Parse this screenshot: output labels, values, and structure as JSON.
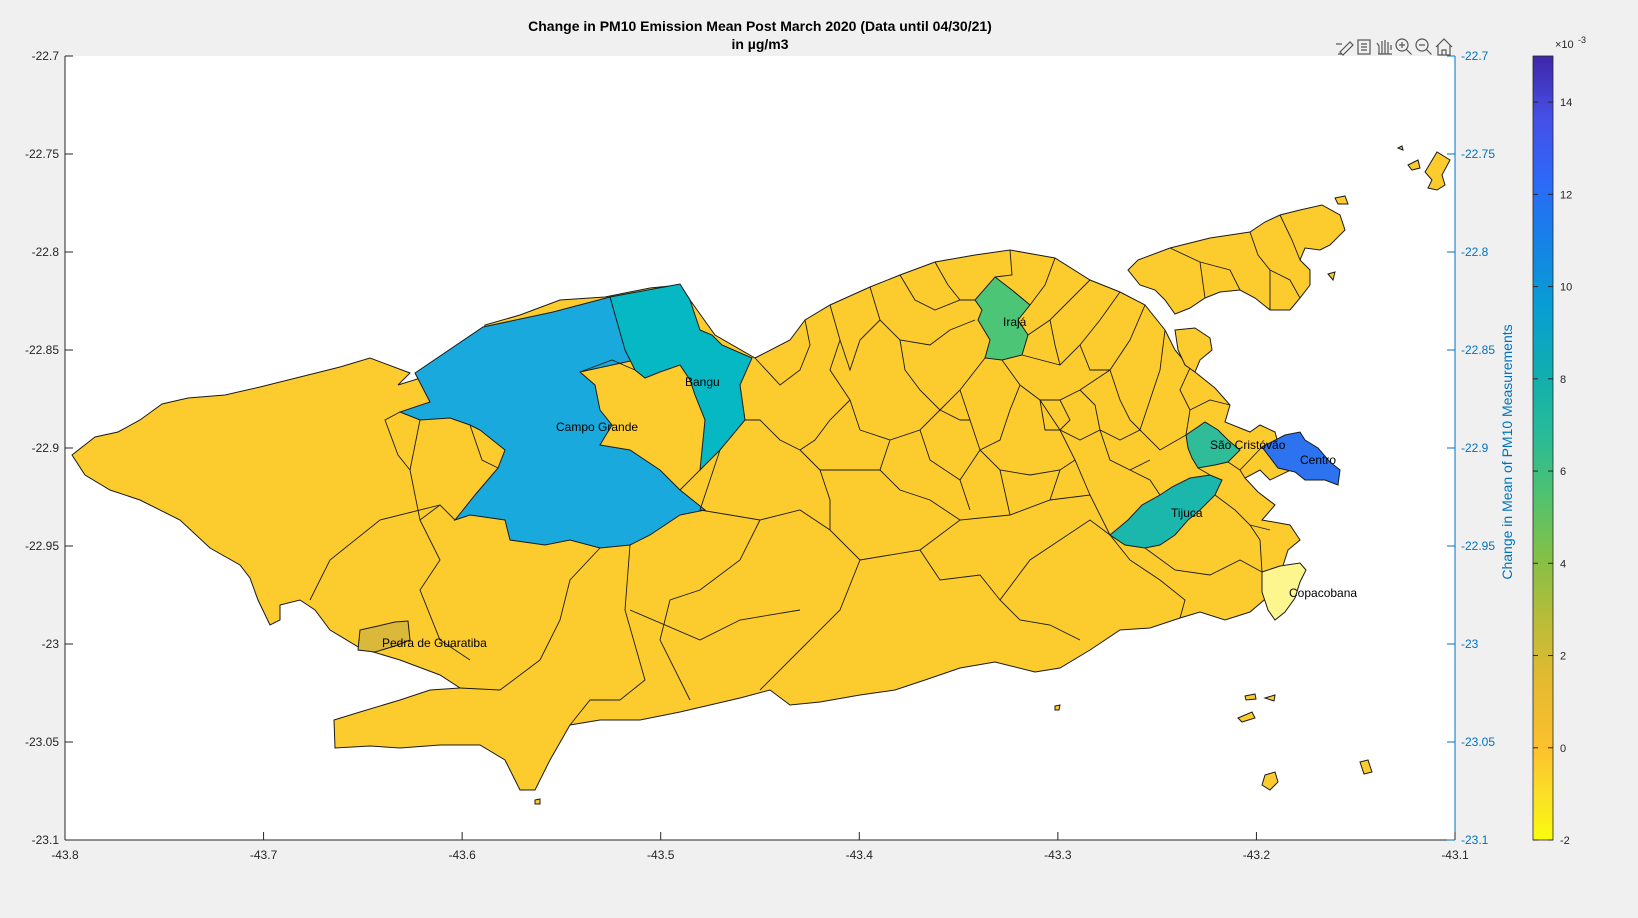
{
  "figure": {
    "title_line1": "Change in PM10 Emission Mean Post March 2020 (Data until 04/30/21)",
    "title_line2": "in  µg/m3"
  },
  "axes": {
    "x_ticks": [
      "-43.8",
      "-43.7",
      "-43.6",
      "-43.5",
      "-43.4",
      "-43.3",
      "-43.2",
      "-43.1"
    ],
    "y_ticks": [
      "-22.7",
      "-22.75",
      "-22.8",
      "-22.85",
      "-22.9",
      "-22.95",
      "-23",
      "-23.05",
      "-23.1"
    ],
    "x_range": [
      -43.8,
      -43.1
    ],
    "y_range": [
      -23.1,
      -22.7
    ],
    "right_axis_color": "#0072BD"
  },
  "colorbar": {
    "label": "Change in Mean of PM10 Measurements",
    "exponent_base": "×10",
    "exponent": "-3",
    "ticks": [
      "-2",
      "0",
      "2",
      "4",
      "6",
      "8",
      "10",
      "12",
      "14"
    ],
    "range": [
      -2,
      15
    ],
    "colormap": "parula",
    "colors": [
      "#f9fb0e",
      "#fbc02d",
      "#e5ba30",
      "#b9bc39",
      "#84c046",
      "#4fc270",
      "#27ba99",
      "#10adb1",
      "#089ed3",
      "#1583e6",
      "#2c69f8",
      "#4650e7",
      "#3e26a8"
    ]
  },
  "toolbar": {
    "icons": [
      "brush-icon",
      "datatip-icon",
      "pan-icon",
      "zoom-in-icon",
      "zoom-out-icon",
      "home-icon"
    ]
  },
  "regions": [
    {
      "name": "Campo Grande",
      "value": 9.0,
      "color": "#1aa9dc"
    },
    {
      "name": "Bangu",
      "value": 7.2,
      "color": "#05b8c4"
    },
    {
      "name": "Irajá",
      "value": 5.0,
      "color": "#4cc676"
    },
    {
      "name": "São Cristóvão",
      "value": 5.6,
      "color": "#2fbc98"
    },
    {
      "name": "Tijuca",
      "value": 6.4,
      "color": "#1bb6ac"
    },
    {
      "name": "Centro",
      "value": 11.5,
      "color": "#2d73f0"
    },
    {
      "name": "Copacobana",
      "value": -1.6,
      "color": "#fdf58e"
    },
    {
      "name": "Pedra de Guaratiba",
      "value": 1.2,
      "color": "#d9b83a"
    }
  ],
  "base_fill": "#fccc2f",
  "labels": {
    "campo_grande": "Campo Grande",
    "bangu": "Bangu",
    "iraja": "Irajá",
    "sao_cristovao": "São Cristóvão",
    "tijuca": "Tijuca",
    "centro": "Centro",
    "copacabana": "Copacobana",
    "pedra": "Pedra de Guaratiba"
  }
}
